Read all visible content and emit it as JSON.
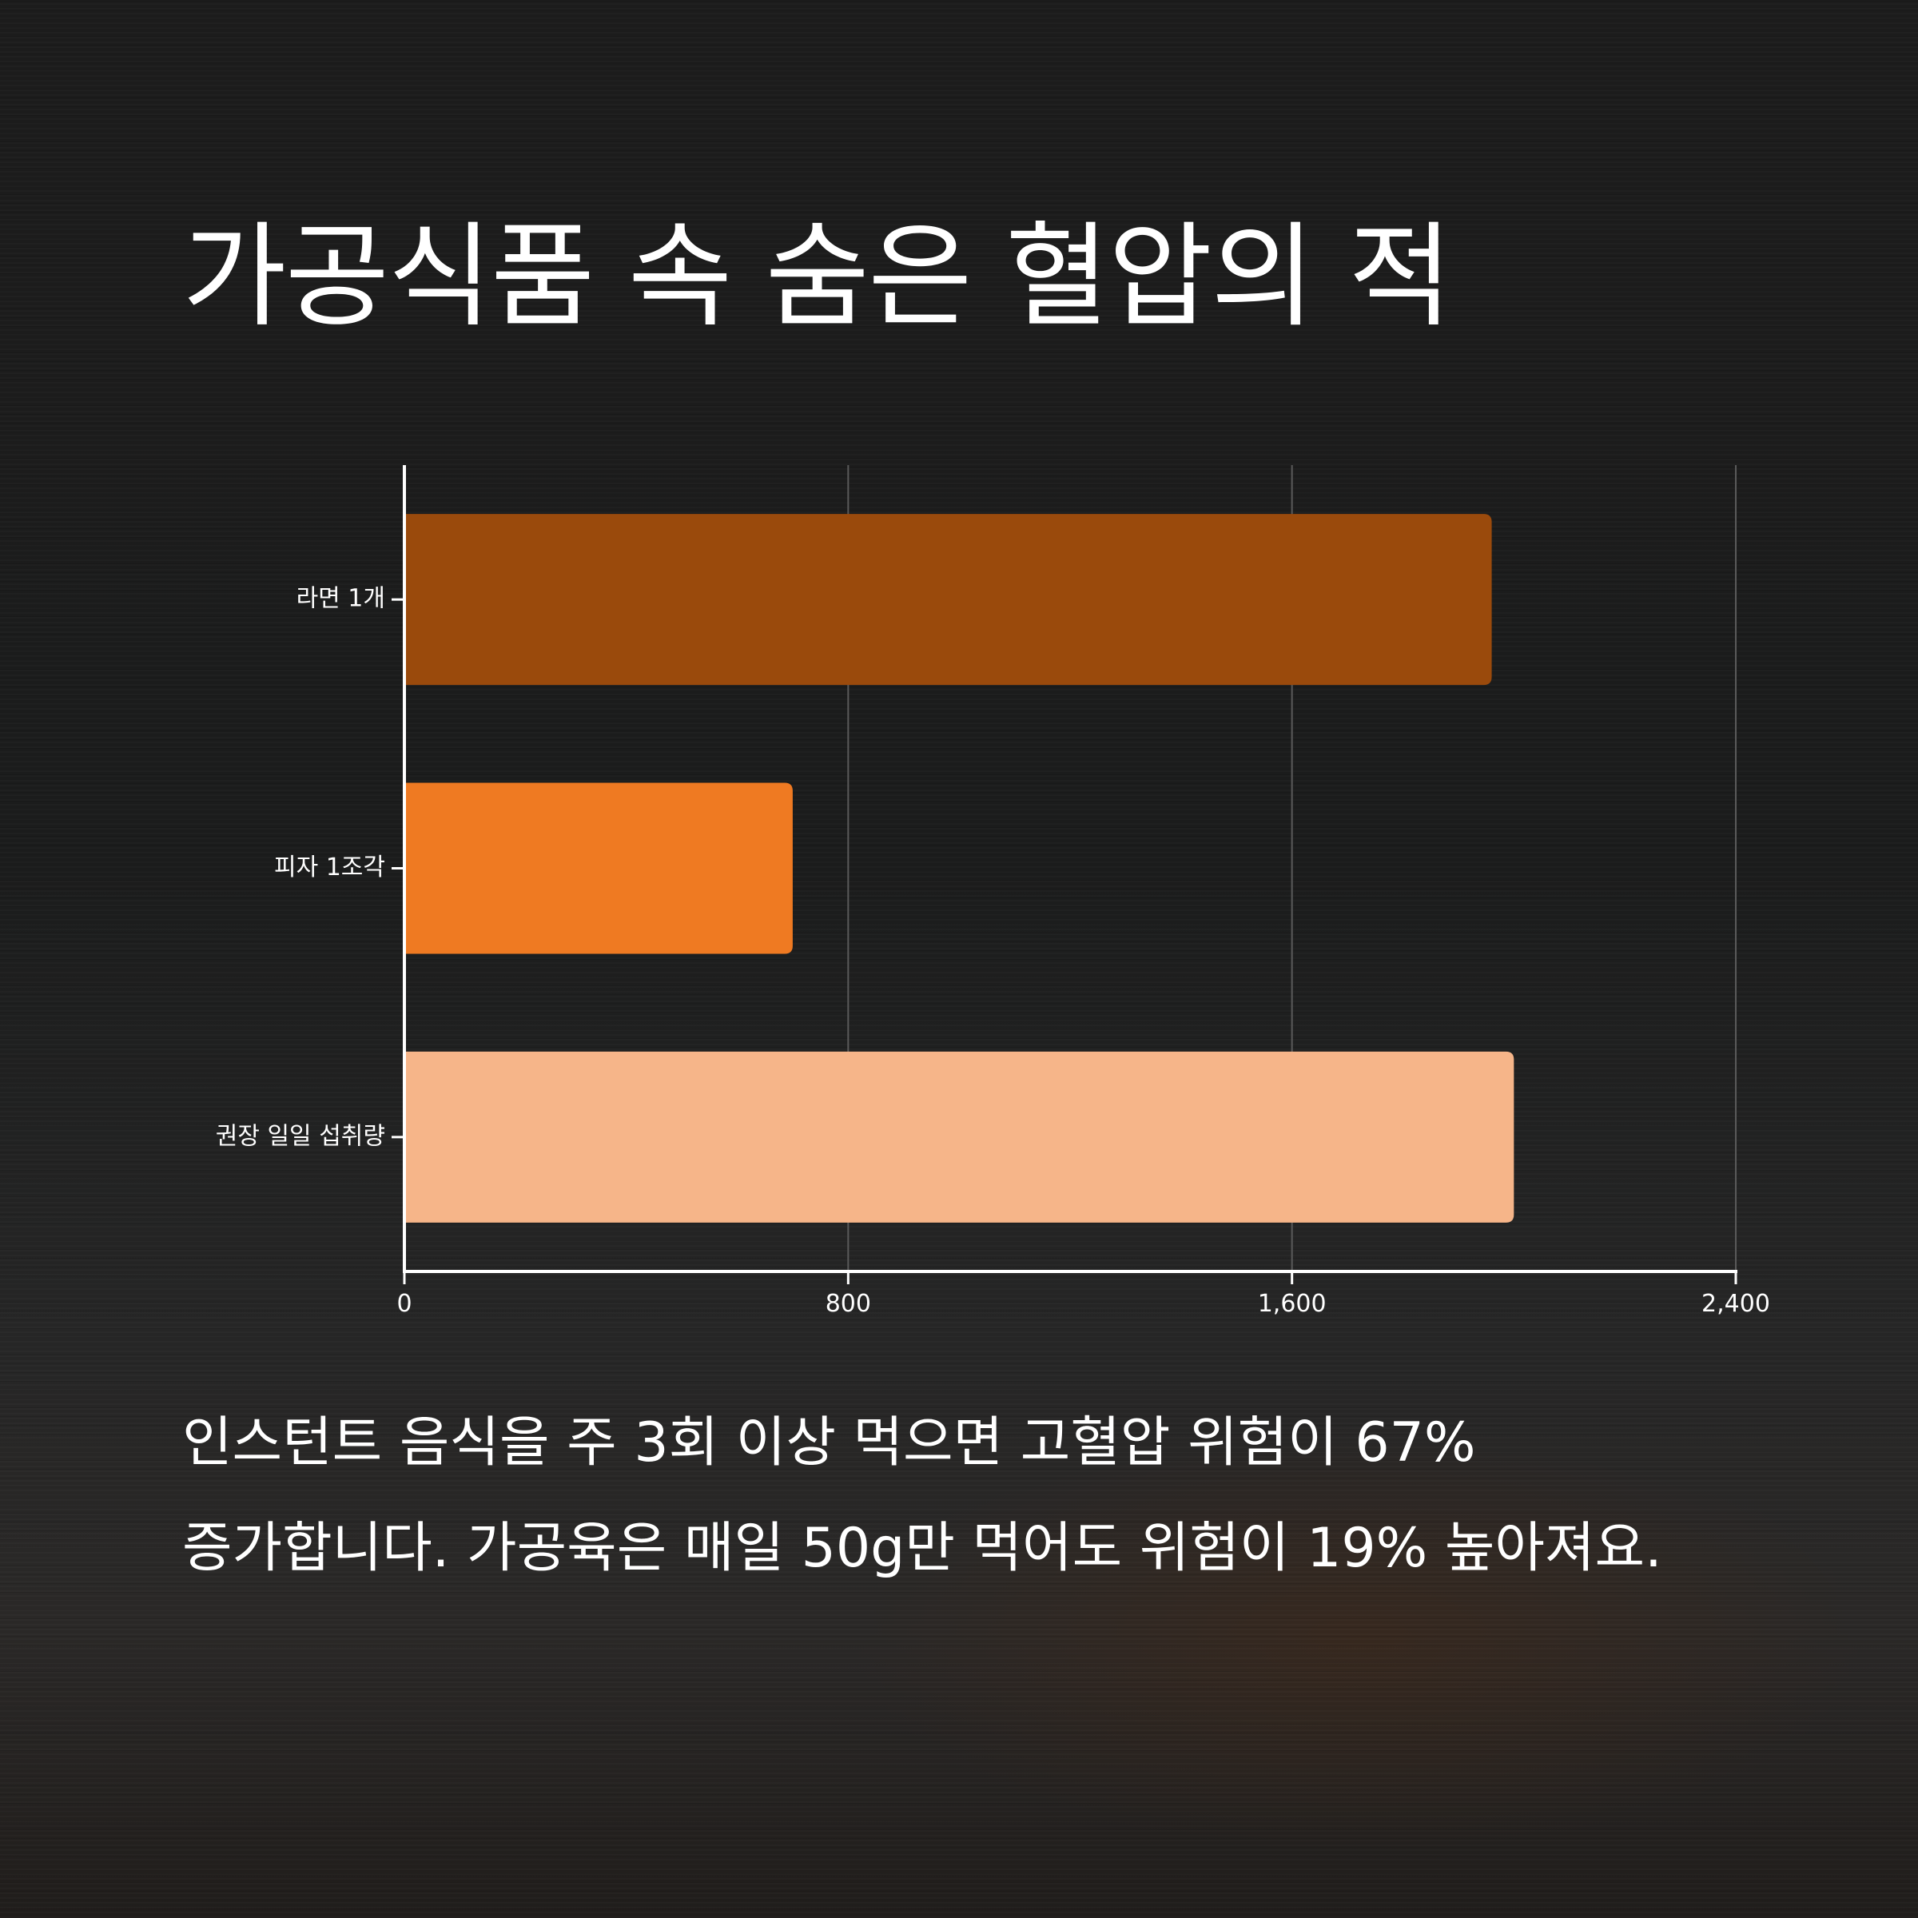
{
  "title": "가공식품 속 숨은 혈압의 적",
  "caption": "인스턴트 음식을 주 3회 이상 먹으면 고혈압 위험이 67% 증가합니다. 가공육은 매일 50g만 먹어도 위험이 19% 높아져요.",
  "chart_data": {
    "type": "bar",
    "orientation": "horizontal",
    "categories": [
      "라면 1개",
      "피자 1조각",
      "권장 일일 섭취량"
    ],
    "values": [
      1960,
      700,
      2000
    ],
    "colors": [
      "#9a4a0c",
      "#ef7a22",
      "#f6b589"
    ],
    "xlim": [
      0,
      2400
    ],
    "xticks": [
      0,
      800,
      1600,
      2400
    ],
    "xtick_labels": [
      "0",
      "800",
      "1,600",
      "2,400"
    ],
    "grid": true
  }
}
